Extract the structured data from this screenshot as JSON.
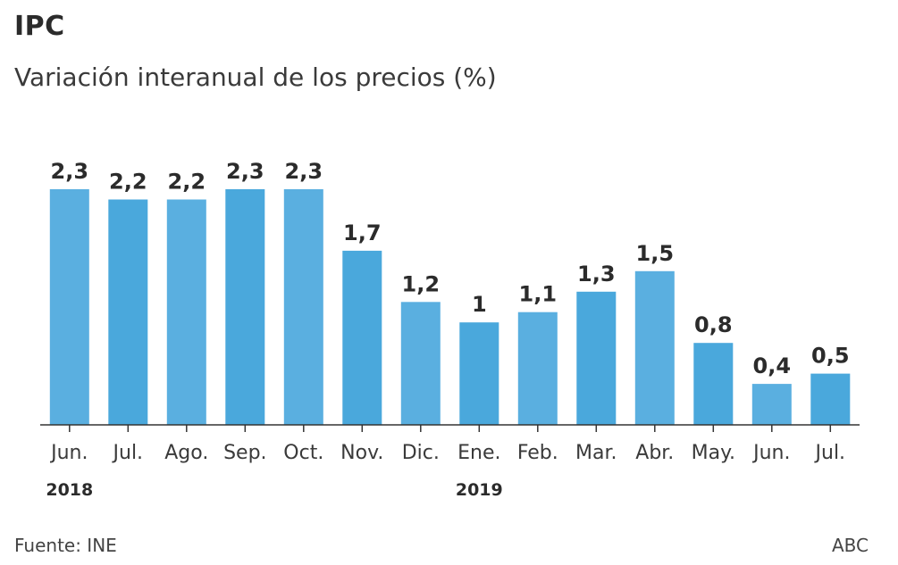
{
  "header": {
    "title": "IPC",
    "subtitle": "Variación interanual de los precios (%)"
  },
  "footer": {
    "source": "Fuente: INE",
    "brand": "ABC"
  },
  "colors": {
    "bar": "#5aafe0",
    "bar_alt": "#4aa8dc",
    "axis": "#333333"
  },
  "chart_data": {
    "type": "bar",
    "categories": [
      "Jun.",
      "Jul.",
      "Ago.",
      "Sep.",
      "Oct.",
      "Nov.",
      "Dic.",
      "Ene.",
      "Feb.",
      "Mar.",
      "Abr.",
      "May.",
      "Jun.",
      "Jul."
    ],
    "values": [
      2.3,
      2.2,
      2.2,
      2.3,
      2.3,
      1.7,
      1.2,
      1,
      1.1,
      1.3,
      1.5,
      0.8,
      0.4,
      0.5
    ],
    "value_labels": [
      "2,3",
      "2,2",
      "2,2",
      "2,3",
      "2,3",
      "1,7",
      "1,2",
      "1",
      "1,1",
      "1,3",
      "1,5",
      "0,8",
      "0,4",
      "0,5"
    ],
    "year_labels": [
      {
        "text": "2018",
        "category_index": 0
      },
      {
        "text": "2019",
        "category_index": 7
      }
    ],
    "title": "IPC",
    "subtitle": "Variación interanual de los precios (%)",
    "xlabel": "",
    "ylabel": "",
    "ylim": [
      0,
      2.3
    ],
    "grid": false,
    "legend": "none"
  }
}
